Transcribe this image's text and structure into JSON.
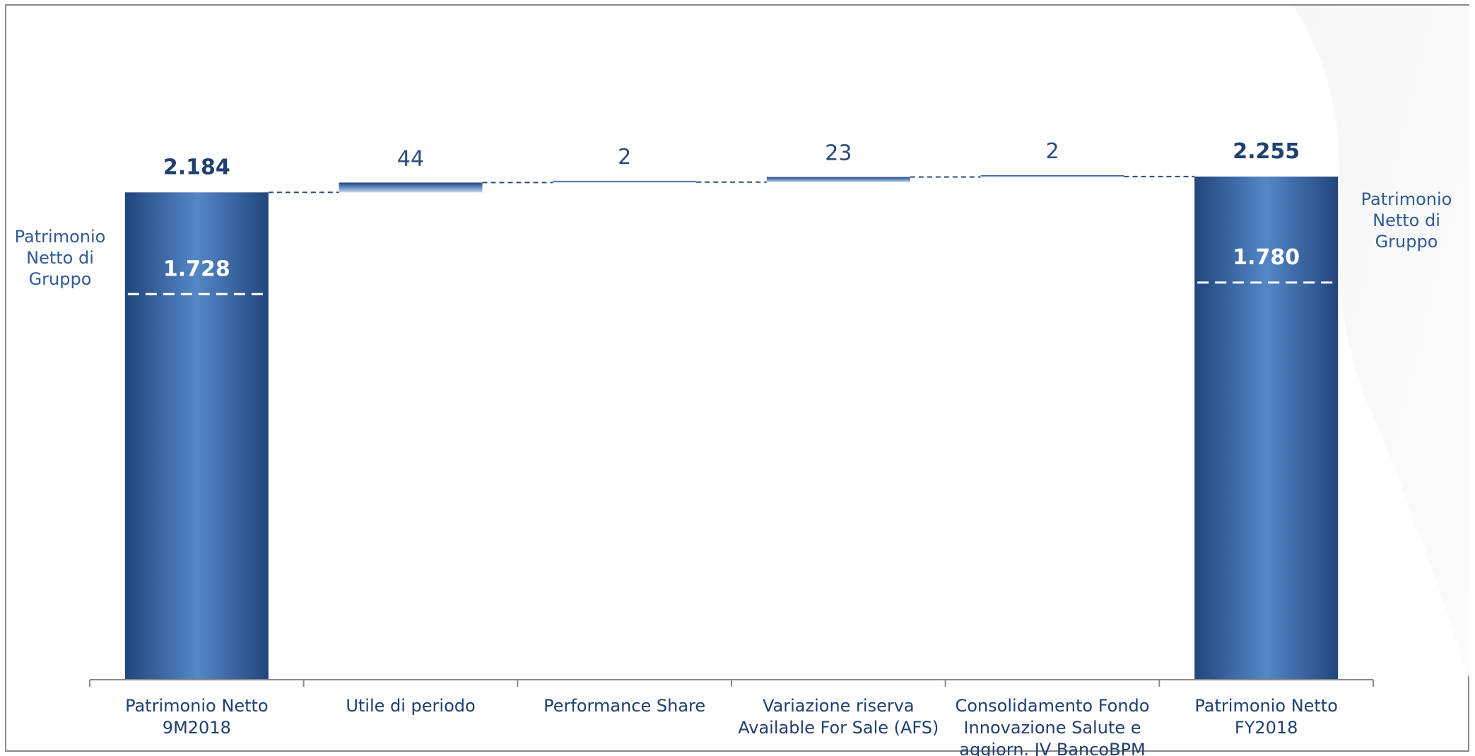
{
  "chart_data": {
    "type": "bar",
    "subtype": "waterfall",
    "ylim": [
      0,
      2300
    ],
    "grid": false,
    "categories": [
      "Patrimonio Netto\n9M2018",
      "Utile di periodo",
      "Performance Share",
      "Variazione riserva\nAvailable For Sale (AFS)",
      "Consolidamento Fondo\nInnovazione Salute e\naggiorn. JV BancoBPM",
      "Patrimonio Netto\nFY2018"
    ],
    "bars": [
      {
        "kind": "total",
        "value": 2184,
        "label": "2.184",
        "inner_value": 1728,
        "inner_label": "1.728"
      },
      {
        "kind": "delta",
        "start": 2184,
        "value": 44,
        "label": "44"
      },
      {
        "kind": "delta",
        "start": 2228,
        "value": 2,
        "label": "2"
      },
      {
        "kind": "delta",
        "start": 2230,
        "value": 23,
        "label": "23"
      },
      {
        "kind": "delta",
        "start": 2253,
        "value": 2,
        "label": "2"
      },
      {
        "kind": "total",
        "value": 2255,
        "label": "2.255",
        "inner_value": 1780,
        "inner_label": "1.780"
      }
    ],
    "side_labels": {
      "left": "Patrimonio\nNetto di\nGruppo",
      "right": "Patrimonio\nNetto di\nGruppo"
    },
    "colors": {
      "bar_dark": "#23467d",
      "bar_light": "#5385c4",
      "delta_light": "#c5d5e8",
      "connector": "#2b4c7a",
      "axis": "#8a8a8a"
    }
  }
}
